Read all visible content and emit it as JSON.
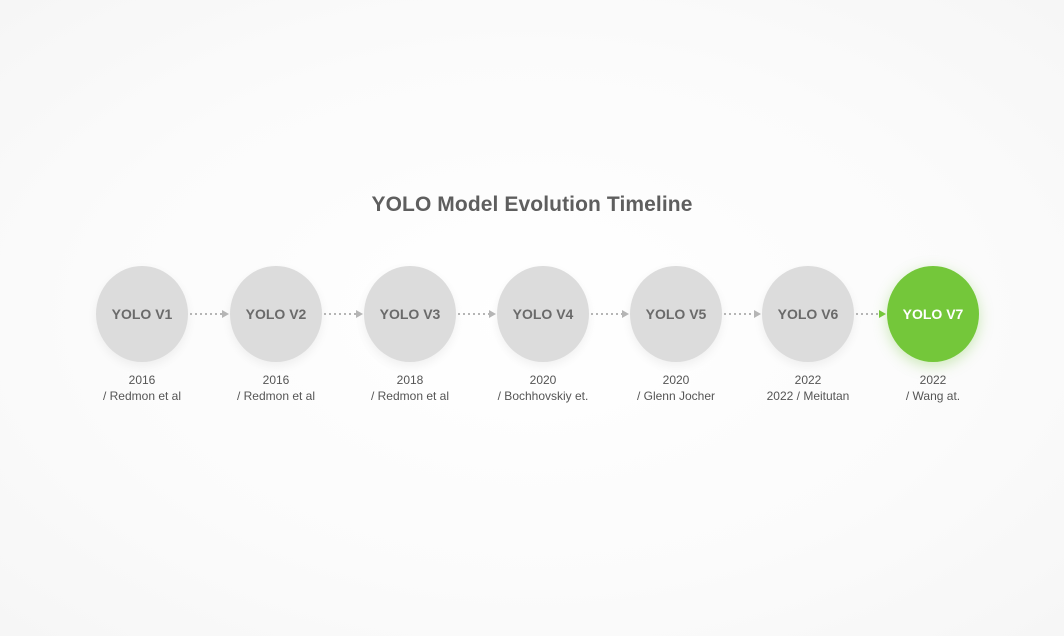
{
  "title": "YOLO Model Evolution Timeline",
  "nodes": [
    {
      "label": "YOLO V1",
      "year": "2016",
      "author": "/ Redmon et al"
    },
    {
      "label": "YOLO V2",
      "year": "2016",
      "author": "/ Redmon et al"
    },
    {
      "label": "YOLO V3",
      "year": "2018",
      "author": "/ Redmon et al"
    },
    {
      "label": "YOLO V4",
      "year": "2020",
      "author": "/ Bochhovskiy et."
    },
    {
      "label": "YOLO V5",
      "year": "2020",
      "author": "/ Glenn Jocher"
    },
    {
      "label": "YOLO V6",
      "year": "2022",
      "author": "2022 / Meitutan"
    },
    {
      "label": "YOLO V7",
      "year": "2022",
      "author": "/ Wang at."
    }
  ],
  "colors": {
    "inactive": "#dcdcdc",
    "active": "#74c73a",
    "connector": "#b5b5b5",
    "connector_active": "#74c73a"
  }
}
